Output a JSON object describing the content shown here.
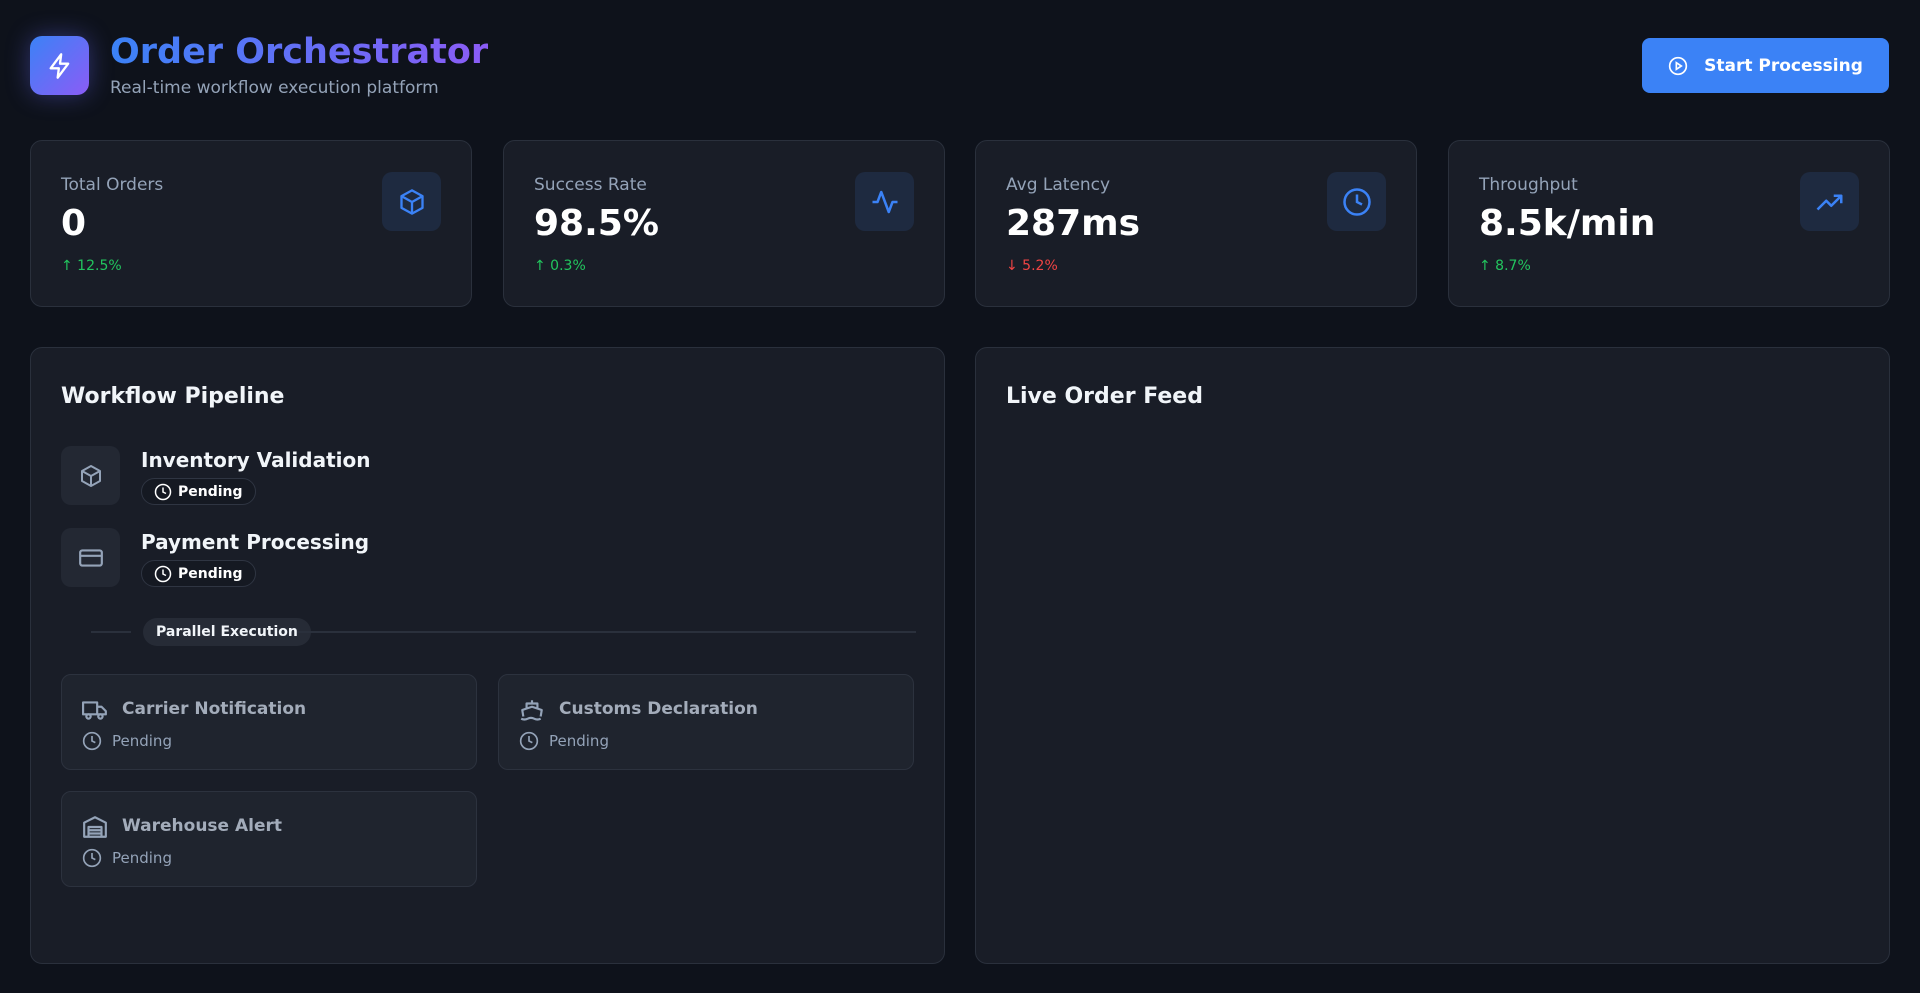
{
  "header": {
    "title": "Order Orchestrator",
    "subtitle": "Real-time workflow execution platform",
    "button": "Start Processing"
  },
  "stats": [
    {
      "label": "Total Orders",
      "value": "0",
      "change": "↑ 12.5%"
    },
    {
      "label": "Success Rate",
      "value": "98.5%",
      "change": "↑ 0.3%"
    },
    {
      "label": "Avg Latency",
      "value": "287ms",
      "change": "↓ 5.2%"
    },
    {
      "label": "Throughput",
      "value": "8.5k/min",
      "change": "↑ 8.7%"
    }
  ],
  "pipeline": {
    "title": "Workflow Pipeline",
    "steps": [
      {
        "name": "Inventory Validation",
        "status": "Pending"
      },
      {
        "name": "Payment Processing",
        "status": "Pending"
      }
    ],
    "parallel_label": "Parallel Execution",
    "parallel_tasks": [
      {
        "name": "Carrier Notification",
        "status": "Pending"
      },
      {
        "name": "Customs Declaration",
        "status": "Pending"
      },
      {
        "name": "Warehouse Alert",
        "status": "Pending"
      }
    ]
  },
  "feed": {
    "title": "Live Order Feed"
  }
}
